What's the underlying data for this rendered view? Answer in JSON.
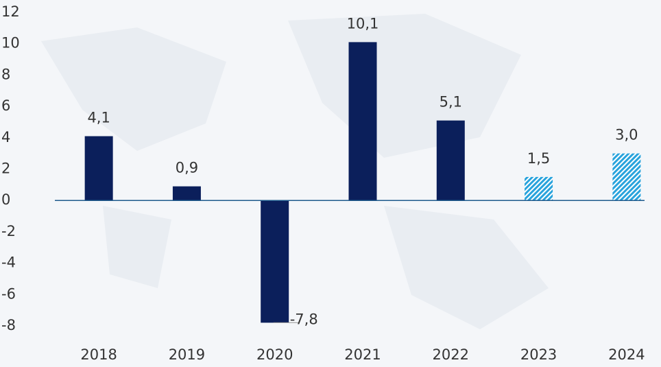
{
  "chart_data": {
    "type": "bar",
    "categories": [
      "2018",
      "2019",
      "2020",
      "2021",
      "2022",
      "2023",
      "2024"
    ],
    "values": [
      4.1,
      0.9,
      -7.8,
      10.1,
      5.1,
      1.5,
      3.0
    ],
    "value_labels": [
      "4,1",
      "0,9",
      "-7,8",
      "10,1",
      "5,1",
      "1,5",
      "3,0"
    ],
    "colors": [
      "#0b1f5b",
      "#0b1f5b",
      "#0b1f5b",
      "#0b1f5b",
      "#0b1f5b",
      "#29a3dc",
      "#29a3dc"
    ],
    "hatched": [
      false,
      false,
      false,
      false,
      false,
      true,
      true
    ],
    "ylim": [
      -8,
      12
    ],
    "yticks": [
      -8,
      -6,
      -4,
      -2,
      0,
      2,
      4,
      6,
      8,
      10,
      12
    ]
  }
}
